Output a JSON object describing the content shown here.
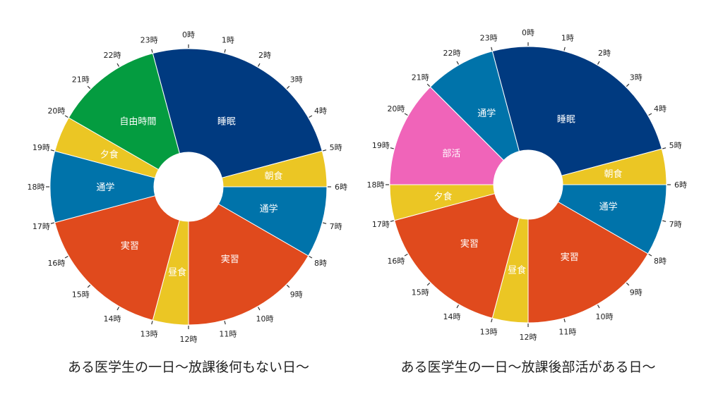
{
  "chart_data": [
    {
      "type": "pie",
      "variant": "donut-24h-clock",
      "title": "ある医学生の一日〜放課後何もない日〜",
      "unit": "hours",
      "tick_labels": [
        "0時",
        "1時",
        "2時",
        "3時",
        "4時",
        "5時",
        "6時",
        "7時",
        "8時",
        "9時",
        "10時",
        "11時",
        "12時",
        "13時",
        "14時",
        "15時",
        "16時",
        "17時",
        "18時",
        "19時",
        "20時",
        "21時",
        "22時",
        "23時"
      ],
      "segments": [
        {
          "label": "睡眠",
          "start": 23,
          "end": 5,
          "color": "#003a80"
        },
        {
          "label": "朝食",
          "start": 5,
          "end": 6,
          "color": "#ebc624"
        },
        {
          "label": "通学",
          "start": 6,
          "end": 8,
          "color": "#0073aa"
        },
        {
          "label": "実習",
          "start": 8,
          "end": 12,
          "color": "#e04a1d"
        },
        {
          "label": "昼食",
          "start": 12,
          "end": 13,
          "color": "#ebc624"
        },
        {
          "label": "実習",
          "start": 13,
          "end": 17,
          "color": "#e04a1d"
        },
        {
          "label": "通学",
          "start": 17,
          "end": 19,
          "color": "#0073aa"
        },
        {
          "label": "夕食",
          "start": 19,
          "end": 20,
          "color": "#ebc624"
        },
        {
          "label": "自由時間",
          "start": 20,
          "end": 23,
          "color": "#049c40"
        }
      ]
    },
    {
      "type": "pie",
      "variant": "donut-24h-clock",
      "title": "ある医学生の一日〜放課後部活がある日〜",
      "unit": "hours",
      "tick_labels": [
        "0時",
        "1時",
        "2時",
        "3時",
        "4時",
        "5時",
        "6時",
        "7時",
        "8時",
        "9時",
        "10時",
        "11時",
        "12時",
        "13時",
        "14時",
        "15時",
        "16時",
        "17時",
        "18時",
        "19時",
        "20時",
        "21時",
        "22時",
        "23時"
      ],
      "segments": [
        {
          "label": "睡眠",
          "start": 23,
          "end": 5,
          "color": "#003a80"
        },
        {
          "label": "朝食",
          "start": 5,
          "end": 6,
          "color": "#ebc624"
        },
        {
          "label": "通学",
          "start": 6,
          "end": 8,
          "color": "#0073aa"
        },
        {
          "label": "実習",
          "start": 8,
          "end": 12,
          "color": "#e04a1d"
        },
        {
          "label": "昼食",
          "start": 12,
          "end": 13,
          "color": "#ebc624"
        },
        {
          "label": "実習",
          "start": 13,
          "end": 17,
          "color": "#e04a1d"
        },
        {
          "label": "夕食",
          "start": 17,
          "end": 18,
          "color": "#ebc624"
        },
        {
          "label": "部活",
          "start": 18,
          "end": 21,
          "color": "#f064b9"
        },
        {
          "label": "通学",
          "start": 21,
          "end": 23,
          "color": "#0073aa"
        }
      ]
    }
  ]
}
